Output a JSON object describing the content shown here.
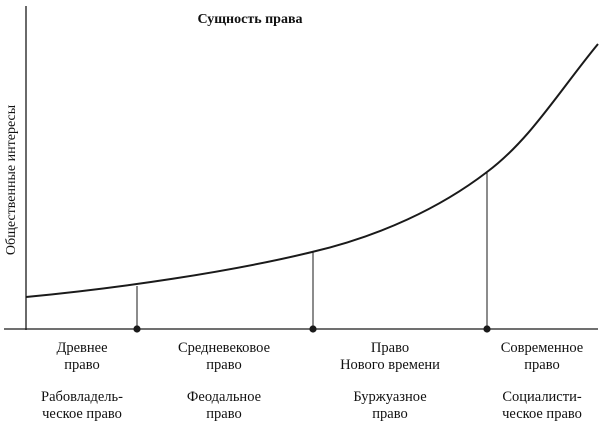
{
  "title": "Сущность права",
  "y_axis_label": "Общественные интересы",
  "eras": [
    {
      "period_lines": [
        "Древнее",
        "право"
      ],
      "type_lines": [
        "Рабовладель-",
        "ческое право"
      ]
    },
    {
      "period_lines": [
        "Средневековое",
        "право"
      ],
      "type_lines": [
        "Феодальное",
        "право"
      ]
    },
    {
      "period_lines": [
        "Право",
        "Нового времени"
      ],
      "type_lines": [
        "Буржуазное",
        "право"
      ]
    },
    {
      "period_lines": [
        "Современное",
        "право"
      ],
      "type_lines": [
        "Социалисти-",
        "ческое право"
      ]
    }
  ]
}
